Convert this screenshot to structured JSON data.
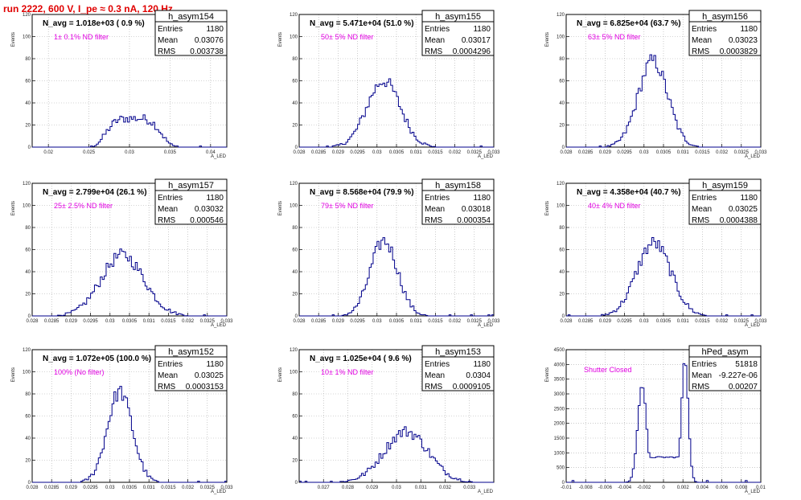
{
  "title": "run 2222,   600 V, I_pe ≈ 0.3 nA, 120 Hz",
  "ylabel": "Events",
  "xlabel": "A_LED",
  "stat_labels": {
    "entries": "Entries",
    "mean": "Mean",
    "rms": "RMS"
  },
  "chart_data": [
    {
      "type": "bar",
      "name": "h_asym154",
      "navg": "N_avg = 1.018e+03 ( 0.9 %)",
      "filter": "1± 0.1% ND filter",
      "entries": "1180",
      "mean": "0.03076",
      "rms": "0.003738",
      "xlim": [
        0.018,
        0.042
      ],
      "ylim": [
        0,
        120
      ],
      "xticks": [
        0.02,
        0.025,
        0.03,
        0.035,
        0.04
      ],
      "xticklabels": [
        "0.02",
        "0.025",
        "0.03",
        "0.035",
        "0.04"
      ],
      "yticks": [
        0,
        20,
        40,
        60,
        80,
        100,
        120
      ],
      "shape": {
        "kind": "flat",
        "mu": 0.0305,
        "sigma": 0.0034,
        "peak": 26,
        "lo": 0.0215,
        "hi": 0.0405
      }
    },
    {
      "type": "bar",
      "name": "h_asym155",
      "navg": "N_avg = 5.471e+04 (51.0 %)",
      "filter": "50± 5% ND filter",
      "entries": "1180",
      "mean": "0.03017",
      "rms": "0.0004296",
      "xlim": [
        0.028,
        0.033
      ],
      "ylim": [
        0,
        120
      ],
      "xticks": [
        0.028,
        0.0285,
        0.029,
        0.0295,
        0.03,
        0.0305,
        0.031,
        0.0315,
        0.032,
        0.0325,
        0.033
      ],
      "xticklabels": [
        "0.028",
        "0.0285",
        "0.029",
        "0.0295",
        "0.03",
        "0.0305",
        "0.031",
        "0.0315",
        "0.032",
        "0.0325",
        "0.033"
      ],
      "yticks": [
        0,
        20,
        40,
        60,
        80,
        100,
        120
      ],
      "shape": {
        "kind": "gauss",
        "mu": 0.03017,
        "sigma": 0.00043,
        "peak": 60
      }
    },
    {
      "type": "bar",
      "name": "h_asym156",
      "navg": "N_avg = 6.825e+04 (63.7 %)",
      "filter": "63± 5% ND filter",
      "entries": "1180",
      "mean": "0.03023",
      "rms": "0.0003829",
      "xlim": [
        0.028,
        0.033
      ],
      "ylim": [
        0,
        120
      ],
      "xticks": [
        0.028,
        0.0285,
        0.029,
        0.0295,
        0.03,
        0.0305,
        0.031,
        0.0315,
        0.032,
        0.0325,
        0.033
      ],
      "xticklabels": [
        "0.028",
        "0.0285",
        "0.029",
        "0.0295",
        "0.03",
        "0.0305",
        "0.031",
        "0.0315",
        "0.032",
        "0.0325",
        "0.033"
      ],
      "yticks": [
        0,
        20,
        40,
        60,
        80,
        100,
        120
      ],
      "shape": {
        "kind": "gauss",
        "mu": 0.03023,
        "sigma": 0.00038,
        "peak": 78
      }
    },
    {
      "type": "bar",
      "name": "h_asym157",
      "navg": "N_avg = 2.799e+04 (26.1 %)",
      "filter": "25± 2.5% ND filter",
      "entries": "1180",
      "mean": "0.03032",
      "rms": "0.000546",
      "xlim": [
        0.028,
        0.033
      ],
      "ylim": [
        0,
        120
      ],
      "xticks": [
        0.028,
        0.0285,
        0.029,
        0.0295,
        0.03,
        0.0305,
        0.031,
        0.0315,
        0.032,
        0.0325,
        0.033
      ],
      "xticklabels": [
        "0.028",
        "0.0285",
        "0.029",
        "0.0295",
        "0.03",
        "0.0305",
        "0.031",
        "0.0315",
        "0.032",
        "0.0325",
        "0.033"
      ],
      "yticks": [
        0,
        20,
        40,
        60,
        80,
        100,
        120
      ],
      "shape": {
        "kind": "gauss",
        "mu": 0.03032,
        "sigma": 0.00055,
        "peak": 55
      }
    },
    {
      "type": "bar",
      "name": "h_asym158",
      "navg": "N_avg = 8.568e+04 (79.9 %)",
      "filter": "79± 5% ND filter",
      "entries": "1180",
      "mean": "0.03018",
      "rms": "0.000354",
      "xlim": [
        0.028,
        0.033
      ],
      "ylim": [
        0,
        120
      ],
      "xticks": [
        0.028,
        0.0285,
        0.029,
        0.0295,
        0.03,
        0.0305,
        0.031,
        0.0315,
        0.032,
        0.0325,
        0.033
      ],
      "xticklabels": [
        "0.028",
        "0.0285",
        "0.029",
        "0.0295",
        "0.03",
        "0.0305",
        "0.031",
        "0.0315",
        "0.032",
        "0.0325",
        "0.033"
      ],
      "yticks": [
        0,
        20,
        40,
        60,
        80,
        100,
        120
      ],
      "shape": {
        "kind": "gauss",
        "mu": 0.03018,
        "sigma": 0.00035,
        "peak": 68
      }
    },
    {
      "type": "bar",
      "name": "h_asym159",
      "navg": "N_avg = 4.358e+04 (40.7 %)",
      "filter": "40± 4% ND filter",
      "entries": "1180",
      "mean": "0.03025",
      "rms": "0.0004388",
      "xlim": [
        0.028,
        0.033
      ],
      "ylim": [
        0,
        120
      ],
      "xticks": [
        0.028,
        0.0285,
        0.029,
        0.0295,
        0.03,
        0.0305,
        0.031,
        0.0315,
        0.032,
        0.0325,
        0.033
      ],
      "xticklabels": [
        "0.028",
        "0.0285",
        "0.029",
        "0.0295",
        "0.03",
        "0.0305",
        "0.031",
        "0.0315",
        "0.032",
        "0.0325",
        "0.033"
      ],
      "yticks": [
        0,
        20,
        40,
        60,
        80,
        100,
        120
      ],
      "shape": {
        "kind": "gauss",
        "mu": 0.03025,
        "sigma": 0.00044,
        "peak": 66
      }
    },
    {
      "type": "bar",
      "name": "h_asym152",
      "navg": "N_avg = 1.072e+05 (100.0 %)",
      "filter": "100% (No filter)",
      "entries": "1180",
      "mean": "0.03025",
      "rms": "0.0003153",
      "xlim": [
        0.028,
        0.033
      ],
      "ylim": [
        0,
        120
      ],
      "xticks": [
        0.028,
        0.0285,
        0.029,
        0.0295,
        0.03,
        0.0305,
        0.031,
        0.0315,
        0.032,
        0.0325,
        0.033
      ],
      "xticklabels": [
        "0.028",
        "0.0285",
        "0.029",
        "0.0295",
        "0.03",
        "0.0305",
        "0.031",
        "0.0315",
        "0.032",
        "0.0325",
        "0.033"
      ],
      "yticks": [
        0,
        20,
        40,
        60,
        80,
        100,
        120
      ],
      "shape": {
        "kind": "gauss",
        "mu": 0.03025,
        "sigma": 0.00032,
        "peak": 82
      }
    },
    {
      "type": "bar",
      "name": "h_asym153",
      "navg": "N_avg = 1.025e+04 ( 9.6 %)",
      "filter": "10± 1% ND filter",
      "entries": "1180",
      "mean": "0.0304",
      "rms": "0.0009105",
      "xlim": [
        0.026,
        0.034
      ],
      "ylim": [
        0,
        120
      ],
      "xticks": [
        0.027,
        0.028,
        0.029,
        0.03,
        0.031,
        0.032,
        0.033
      ],
      "xticklabels": [
        "0.027",
        "0.028",
        "0.029",
        "0.03",
        "0.031",
        "0.032",
        "0.033"
      ],
      "yticks": [
        0,
        20,
        40,
        60,
        80,
        100,
        120
      ],
      "shape": {
        "kind": "gauss",
        "mu": 0.0304,
        "sigma": 0.00091,
        "peak": 46
      }
    },
    {
      "type": "bar",
      "name": "hPed_asym",
      "navg": "",
      "filter": "Shutter Closed",
      "entries": "51818",
      "mean": "-9.227e-06",
      "rms": "0.00207",
      "xlim": [
        -0.01,
        0.01
      ],
      "ylim": [
        0,
        4500
      ],
      "xticks": [
        -0.01,
        -0.008,
        -0.006,
        -0.004,
        -0.002,
        0,
        0.002,
        0.004,
        0.006,
        0.008,
        0.01
      ],
      "xticklabels": [
        "-0.01",
        "-0.008",
        "-0.006",
        "-0.004",
        "-0.002",
        "0",
        "0.002",
        "0.004",
        "0.006",
        "0.008",
        "0.01"
      ],
      "yticks": [
        0,
        500,
        1000,
        1500,
        2000,
        2500,
        3000,
        3500,
        4000,
        4500
      ],
      "shape": {
        "kind": "double",
        "mu": [
          -0.0022,
          0.0022
        ],
        "sigma": [
          0.00045,
          0.00035
        ],
        "peak": [
          3300,
          4150
        ],
        "base": 850
      }
    }
  ]
}
